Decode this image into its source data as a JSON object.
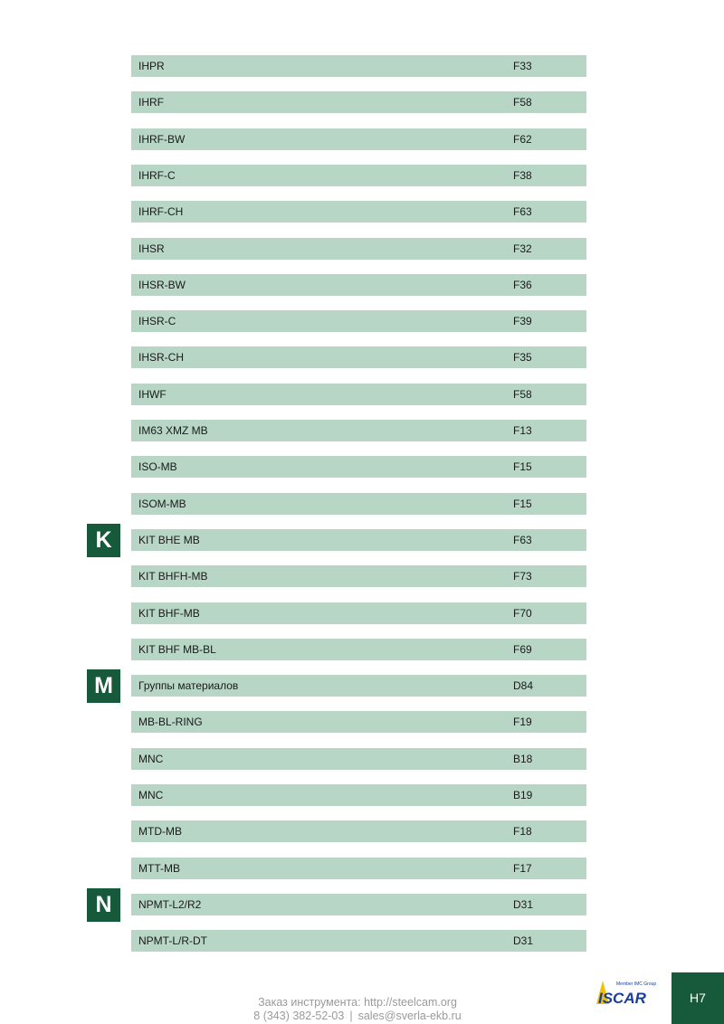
{
  "rows": [
    {
      "name": "IHPR",
      "page": "F33"
    },
    {
      "name": "IHRF",
      "page": "F58"
    },
    {
      "name": "IHRF-BW",
      "page": "F62"
    },
    {
      "name": "IHRF-C",
      "page": "F38"
    },
    {
      "name": "IHRF-CH",
      "page": "F63"
    },
    {
      "name": "IHSR",
      "page": "F32"
    },
    {
      "name": "IHSR-BW",
      "page": "F36"
    },
    {
      "name": "IHSR-C",
      "page": "F39"
    },
    {
      "name": "IHSR-CH",
      "page": "F35"
    },
    {
      "name": "IHWF",
      "page": "F58"
    },
    {
      "name": "IM63 XMZ MB",
      "page": "F13"
    },
    {
      "name": "ISO-MB",
      "page": "F15"
    },
    {
      "name": "ISOM-MB",
      "page": "F15"
    },
    {
      "name": "KIT BHE MB",
      "page": "F63",
      "letter": "K"
    },
    {
      "name": "KIT BHFH-MB",
      "page": "F73"
    },
    {
      "name": "KIT BHF-MB",
      "page": "F70"
    },
    {
      "name": "KIT BHF MB-BL",
      "page": "F69"
    },
    {
      "name": "Группы материалов",
      "page": "D84",
      "letter": "M"
    },
    {
      "name": "MB-BL-RING",
      "page": "F19"
    },
    {
      "name": "MNC",
      "page": "B18"
    },
    {
      "name": "MNC",
      "page": "B19"
    },
    {
      "name": "MTD-MB",
      "page": "F18"
    },
    {
      "name": "MTT-MB",
      "page": "F17"
    },
    {
      "name": "NPMT-L2/R2",
      "page": "D31",
      "letter": "N"
    },
    {
      "name": "NPMT-L/R-DT",
      "page": "D31"
    }
  ],
  "footer": {
    "line1": "Заказ инструмента: http://steelcam.org",
    "phone": "8 (343) 382-52-03",
    "separator": "|",
    "email": "sales@sverla-ekb.ru"
  },
  "logo": {
    "tagline": "Member IMC Group",
    "wordmark": "ISCAR",
    "colors": {
      "blue": "#1a3f9b",
      "yellow": "#f2c200"
    }
  },
  "page_number": "H7",
  "colors": {
    "row": "#b7d6c5",
    "accent": "#175a3b"
  }
}
